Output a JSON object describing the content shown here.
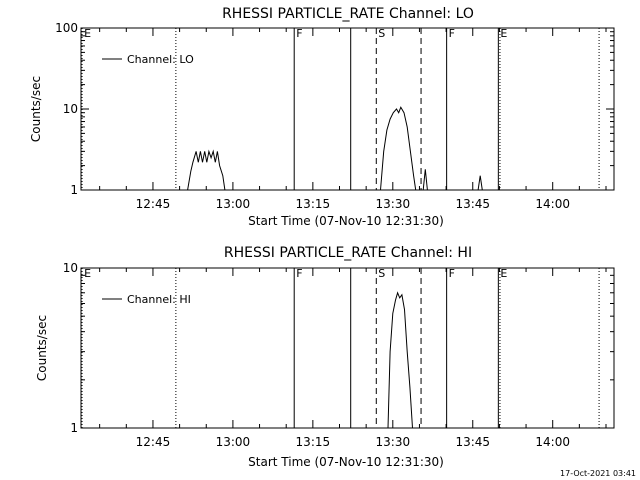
{
  "footer": {
    "timestamp": "17-Oct-2021 03:41"
  },
  "chart_data": [
    {
      "type": "line",
      "title": "RHESSI PARTICLE_RATE Channel: LO",
      "xlabel": "Start Time (07-Nov-10 12:31:30)",
      "ylabel": "Counts/sec",
      "yscale": "log",
      "ylim": [
        1,
        100
      ],
      "xlim_minutes_since_start": [
        0,
        100
      ],
      "xtick_labels": [
        {
          "label": "12:45",
          "t": 13.5
        },
        {
          "label": "13:00",
          "t": 28.5
        },
        {
          "label": "13:15",
          "t": 43.5
        },
        {
          "label": "13:30",
          "t": 58.5
        },
        {
          "label": "13:45",
          "t": 73.5
        },
        {
          "label": "14:00",
          "t": 88.5
        }
      ],
      "ytick_labels": [
        {
          "label": "1",
          "v": 1
        },
        {
          "label": "10",
          "v": 10
        },
        {
          "label": "100",
          "v": 100
        }
      ],
      "legend": {
        "label": "Channel: LO",
        "position": "top-left"
      },
      "markers": [
        {
          "t": 0.2,
          "style": "dotted",
          "label": "E"
        },
        {
          "t": 17.8,
          "style": "dotted",
          "label": ""
        },
        {
          "t": 40.0,
          "style": "solid",
          "label": "F"
        },
        {
          "t": 50.6,
          "style": "solid",
          "label": ""
        },
        {
          "t": 55.4,
          "style": "dashed",
          "label": "S"
        },
        {
          "t": 63.8,
          "style": "dashed",
          "label": ""
        },
        {
          "t": 68.6,
          "style": "solid",
          "label": "F"
        },
        {
          "t": 78.3,
          "style": "solid",
          "label": "E"
        },
        {
          "t": 78.6,
          "style": "dotted",
          "label": ""
        },
        {
          "t": 97.2,
          "style": "dotted",
          "label": ""
        }
      ],
      "series": [
        {
          "t": [
            20.0,
            20.6,
            21.0,
            21.6,
            22.0,
            22.4,
            22.8,
            23.2,
            23.6,
            24.0,
            24.4,
            24.8,
            25.2,
            25.6,
            26.0,
            26.6,
            27.0
          ],
          "v": [
            1,
            1.7,
            2.2,
            3.0,
            2.2,
            3.0,
            2.2,
            3.0,
            2.2,
            3.0,
            2.5,
            3.0,
            2.2,
            3.0,
            2.0,
            1.5,
            1
          ],
          "style": "solid"
        },
        {
          "t": [
            56.2,
            56.8,
            57.4,
            58.0,
            58.6,
            59.2,
            59.6,
            60.0,
            60.6,
            61.2,
            61.8,
            62.4,
            62.8
          ],
          "v": [
            1,
            3.0,
            5.5,
            7.5,
            9.0,
            10.0,
            9.0,
            10.5,
            9.0,
            6.0,
            3.0,
            1.5,
            1
          ],
          "style": "solid"
        },
        {
          "t": [
            64.2,
            64.6,
            65.0
          ],
          "v": [
            1,
            1.8,
            1
          ],
          "style": "solid"
        },
        {
          "t": [
            74.5,
            74.9,
            75.3
          ],
          "v": [
            1,
            1.5,
            1
          ],
          "style": "solid"
        }
      ]
    },
    {
      "type": "line",
      "title": "RHESSI PARTICLE_RATE Channel: HI",
      "xlabel": "Start Time (07-Nov-10 12:31:30)",
      "ylabel": "Counts/sec",
      "yscale": "log",
      "ylim": [
        1,
        10
      ],
      "xlim_minutes_since_start": [
        0,
        100
      ],
      "xtick_labels": [
        {
          "label": "12:45",
          "t": 13.5
        },
        {
          "label": "13:00",
          "t": 28.5
        },
        {
          "label": "13:15",
          "t": 43.5
        },
        {
          "label": "13:30",
          "t": 58.5
        },
        {
          "label": "13:45",
          "t": 73.5
        },
        {
          "label": "14:00",
          "t": 88.5
        }
      ],
      "ytick_labels": [
        {
          "label": "1",
          "v": 1
        },
        {
          "label": "10",
          "v": 10
        }
      ],
      "legend": {
        "label": "Channel: HI",
        "position": "top-left"
      },
      "markers": [
        {
          "t": 0.2,
          "style": "dotted",
          "label": "E"
        },
        {
          "t": 17.8,
          "style": "dotted",
          "label": ""
        },
        {
          "t": 40.0,
          "style": "solid",
          "label": "F"
        },
        {
          "t": 50.6,
          "style": "solid",
          "label": ""
        },
        {
          "t": 55.4,
          "style": "dashed",
          "label": "S"
        },
        {
          "t": 63.8,
          "style": "dashed",
          "label": ""
        },
        {
          "t": 68.6,
          "style": "solid",
          "label": "F"
        },
        {
          "t": 78.3,
          "style": "solid",
          "label": "E"
        },
        {
          "t": 78.6,
          "style": "dotted",
          "label": ""
        },
        {
          "t": 97.2,
          "style": "dotted",
          "label": ""
        }
      ],
      "series": [
        {
          "t": [
            57.6,
            58.0,
            58.5,
            59.0,
            59.4,
            59.8,
            60.2,
            60.7,
            61.2,
            61.7,
            62.2
          ],
          "v": [
            1,
            3.0,
            5.2,
            6.3,
            7.0,
            6.5,
            6.8,
            5.5,
            3.0,
            1.8,
            1
          ],
          "style": "solid"
        }
      ]
    }
  ]
}
